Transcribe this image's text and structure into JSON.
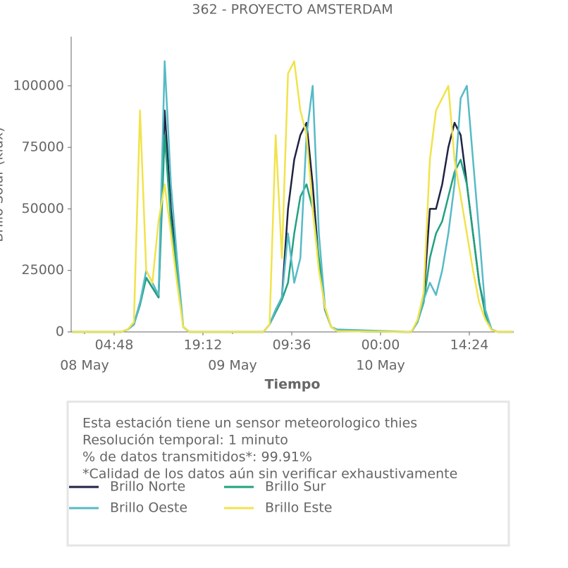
{
  "chart_data": {
    "type": "line",
    "title": "362 - PROYECTO AMSTERDAM",
    "x_label": "Tiempo",
    "y_label": "Brillo Solar (klux)",
    "x": [
      "07 May 22:00",
      "08 May 06:00",
      "08 May 07:00",
      "08 May 08:00",
      "08 May 09:00",
      "08 May 10:00",
      "08 May 11:00",
      "08 May 12:00",
      "08 May 13:00",
      "08 May 14:00",
      "08 May 15:00",
      "08 May 16:00",
      "08 May 17:00",
      "09 May 05:00",
      "09 May 06:00",
      "09 May 07:00",
      "09 May 08:00",
      "09 May 09:00",
      "09 May 10:00",
      "09 May 11:00",
      "09 May 12:00",
      "09 May 13:00",
      "09 May 14:00",
      "09 May 15:00",
      "09 May 16:00",
      "09 May 17:00",
      "10 May 05:00",
      "10 May 06:00",
      "10 May 07:00",
      "10 May 08:00",
      "10 May 09:00",
      "10 May 10:00",
      "10 May 11:00",
      "10 May 12:00",
      "10 May 13:00",
      "10 May 14:00",
      "10 May 15:00",
      "10 May 16:00",
      "10 May 17:00",
      "10 May 18:00",
      "10 May 19:00",
      "10 May 21:30"
    ],
    "series": [
      {
        "name": "Brillo Norte",
        "color": "#1f2344",
        "values": [
          0,
          0,
          1000,
          3000,
          12000,
          22000,
          18000,
          14000,
          90000,
          50000,
          25000,
          2000,
          0,
          0,
          3000,
          9000,
          14000,
          50000,
          70000,
          80000,
          85000,
          60000,
          28000,
          9000,
          2000,
          300,
          0,
          4000,
          14000,
          50000,
          50000,
          60000,
          75000,
          85000,
          80000,
          60000,
          40000,
          20000,
          8000,
          1000,
          0,
          0
        ]
      },
      {
        "name": "Brillo Sur",
        "color": "#21a180",
        "values": [
          0,
          0,
          1000,
          3000,
          11000,
          22000,
          18000,
          14000,
          80000,
          45000,
          25000,
          2000,
          0,
          0,
          3000,
          8000,
          13000,
          20000,
          40000,
          55000,
          60000,
          50000,
          30000,
          9000,
          2000,
          300,
          0,
          4000,
          12000,
          30000,
          40000,
          45000,
          55000,
          65000,
          70000,
          60000,
          40000,
          20000,
          7000,
          1000,
          0,
          0
        ]
      },
      {
        "name": "Brillo Oeste",
        "color": "#57bac6",
        "values": [
          0,
          0,
          1000,
          3000,
          12000,
          25000,
          20000,
          15000,
          110000,
          60000,
          30000,
          2000,
          0,
          0,
          3000,
          9000,
          14000,
          40000,
          20000,
          30000,
          80000,
          100000,
          40000,
          10000,
          2000,
          1000,
          0,
          4000,
          13000,
          20000,
          15000,
          25000,
          40000,
          60000,
          95000,
          100000,
          70000,
          40000,
          9000,
          1000,
          0,
          0
        ]
      },
      {
        "name": "Brillo Este",
        "color": "#f1e34a",
        "values": [
          0,
          0,
          1000,
          4000,
          90000,
          25000,
          20000,
          45000,
          60000,
          40000,
          20000,
          2000,
          0,
          0,
          3000,
          80000,
          30000,
          105000,
          110000,
          90000,
          80000,
          50000,
          25000,
          10000,
          2000,
          300,
          0,
          5000,
          16000,
          70000,
          90000,
          95000,
          100000,
          70000,
          55000,
          40000,
          25000,
          12000,
          5000,
          800,
          0,
          0
        ]
      }
    ],
    "xlim": [
      "07 May 21:50",
      "10 May 21:36"
    ],
    "xticks": [
      {
        "value": "08 May 04:48",
        "label": "04:48"
      },
      {
        "value": "08 May 19:12",
        "label": "19:12"
      },
      {
        "value": "09 May 09:36",
        "label": "09:36"
      },
      {
        "value": "10 May 00:00",
        "label": "00:00"
      },
      {
        "value": "10 May 14:24",
        "label": "14:24"
      }
    ],
    "xticks_minor": [
      {
        "value": "08 May 00:00",
        "label": "08 May"
      },
      {
        "value": "09 May 00:00",
        "label": "09 May"
      },
      {
        "value": "10 May 00:00",
        "label": "10 May"
      }
    ],
    "ylim": [
      0,
      120000
    ],
    "yticks": [
      0,
      25000,
      50000,
      75000,
      100000
    ],
    "info": [
      "Esta estación tiene un sensor meteorologico thies",
      "Resolución temporal: 1 minuto",
      "% de datos transmitidos*: 99.91%",
      "*Calidad de los datos aún sin verificar exhaustivamente"
    ]
  }
}
